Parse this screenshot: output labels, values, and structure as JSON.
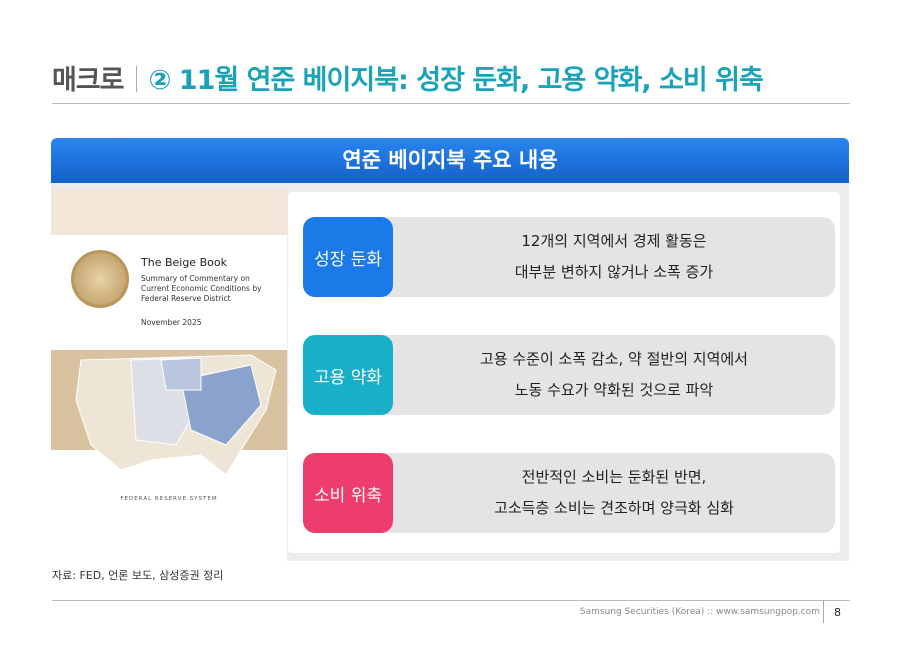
{
  "header": {
    "section": "매크로",
    "title": "② 11월 연준 베이지북: 성장 둔화, 고용 약화, 소비 위축"
  },
  "banner": "연준 베이지북 주요 내용",
  "book": {
    "title": "The Beige Book",
    "subtitle_lines": [
      "Summary of Commentary on",
      "Current Economic Conditions by",
      "Federal Reserve District"
    ],
    "date": "November 2025",
    "footer": "FEDERAL RESERVE SYSTEM"
  },
  "items": [
    {
      "label": "성장 둔화",
      "color": "#1a7be8",
      "lines": [
        "12개의 지역에서 경제 활동은",
        "대부분 변하지 않거나 소폭 증가"
      ]
    },
    {
      "label": "고용 약화",
      "color": "#17b0c8",
      "lines": [
        "고용 수준이 소폭 감소, 약 절반의 지역에서",
        "노동 수요가 약화된 것으로 파악"
      ]
    },
    {
      "label": "소비 위축",
      "color": "#ec3d6d",
      "lines": [
        "전반적인 소비는 둔화된 반면,",
        "고소득층 소비는 견조하며 양극화 심화"
      ]
    }
  ],
  "source": "자료: FED, 언론 보도, 삼성증권 정리",
  "footer": {
    "text": "Samsung Securities (Korea) :: www.samsungpop.com",
    "page": "8"
  }
}
